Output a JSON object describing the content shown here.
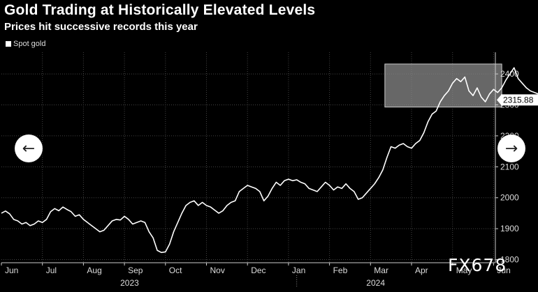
{
  "title": "Gold Trading at Historically Elevated Levels",
  "subtitle": "Prices hit successive records this year",
  "watermark": "FX678",
  "nav": {
    "prev_icon": "arrow-left-icon",
    "next_icon": "arrow-right-icon"
  },
  "chart_data": {
    "type": "line",
    "title": "Gold Trading at Historically Elevated Levels",
    "subtitle": "Prices hit successive records this year",
    "legend": [
      "Spot gold"
    ],
    "legend_position": "top-left",
    "y_axis_side": "right",
    "ylim": [
      1790,
      2470
    ],
    "y_ticks": [
      1800,
      1900,
      2000,
      2100,
      2200,
      2300,
      2400
    ],
    "x_ticks": [
      "Jun",
      "Jul",
      "Aug",
      "Sep",
      "Oct",
      "Nov",
      "Dec",
      "Jan",
      "Feb",
      "Mar",
      "Apr",
      "May",
      "Jun"
    ],
    "year_labels": [
      {
        "label": "2023",
        "under_month_index": 3
      },
      {
        "label": "2024",
        "under_month_index": 9
      }
    ],
    "grid": true,
    "last_value_label": "2315.88",
    "highlight": {
      "from_month_index": 9.35,
      "to_month_index": 12.2,
      "y_from": 2293,
      "y_to": 2432
    },
    "colors": {
      "line": "#ffffff",
      "grid": "#444444",
      "highlight_fill": "#8a8a8a",
      "background": "#000000"
    },
    "series": [
      {
        "name": "Spot gold",
        "points": [
          [
            0.0,
            1950
          ],
          [
            0.1,
            1957
          ],
          [
            0.2,
            1948
          ],
          [
            0.3,
            1930
          ],
          [
            0.4,
            1925
          ],
          [
            0.5,
            1915
          ],
          [
            0.6,
            1920
          ],
          [
            0.7,
            1910
          ],
          [
            0.8,
            1915
          ],
          [
            0.9,
            1925
          ],
          [
            1.0,
            1920
          ],
          [
            1.1,
            1930
          ],
          [
            1.2,
            1955
          ],
          [
            1.3,
            1965
          ],
          [
            1.4,
            1958
          ],
          [
            1.5,
            1970
          ],
          [
            1.6,
            1962
          ],
          [
            1.7,
            1955
          ],
          [
            1.8,
            1940
          ],
          [
            1.9,
            1945
          ],
          [
            2.0,
            1930
          ],
          [
            2.1,
            1920
          ],
          [
            2.2,
            1910
          ],
          [
            2.3,
            1900
          ],
          [
            2.4,
            1890
          ],
          [
            2.5,
            1895
          ],
          [
            2.6,
            1910
          ],
          [
            2.7,
            1925
          ],
          [
            2.8,
            1930
          ],
          [
            2.9,
            1928
          ],
          [
            3.0,
            1940
          ],
          [
            3.1,
            1930
          ],
          [
            3.2,
            1915
          ],
          [
            3.3,
            1920
          ],
          [
            3.4,
            1925
          ],
          [
            3.5,
            1920
          ],
          [
            3.6,
            1890
          ],
          [
            3.7,
            1870
          ],
          [
            3.8,
            1830
          ],
          [
            3.9,
            1823
          ],
          [
            4.0,
            1825
          ],
          [
            4.1,
            1850
          ],
          [
            4.2,
            1890
          ],
          [
            4.3,
            1920
          ],
          [
            4.4,
            1950
          ],
          [
            4.5,
            1975
          ],
          [
            4.6,
            1985
          ],
          [
            4.7,
            1990
          ],
          [
            4.8,
            1975
          ],
          [
            4.9,
            1985
          ],
          [
            5.0,
            1975
          ],
          [
            5.1,
            1970
          ],
          [
            5.2,
            1960
          ],
          [
            5.3,
            1950
          ],
          [
            5.4,
            1958
          ],
          [
            5.5,
            1975
          ],
          [
            5.6,
            1985
          ],
          [
            5.7,
            1990
          ],
          [
            5.8,
            2020
          ],
          [
            5.9,
            2030
          ],
          [
            6.0,
            2040
          ],
          [
            6.1,
            2035
          ],
          [
            6.2,
            2030
          ],
          [
            6.3,
            2020
          ],
          [
            6.4,
            1990
          ],
          [
            6.5,
            2005
          ],
          [
            6.6,
            2030
          ],
          [
            6.7,
            2050
          ],
          [
            6.8,
            2040
          ],
          [
            6.9,
            2055
          ],
          [
            7.0,
            2060
          ],
          [
            7.1,
            2055
          ],
          [
            7.2,
            2058
          ],
          [
            7.3,
            2050
          ],
          [
            7.4,
            2045
          ],
          [
            7.5,
            2030
          ],
          [
            7.6,
            2025
          ],
          [
            7.7,
            2020
          ],
          [
            7.8,
            2035
          ],
          [
            7.9,
            2050
          ],
          [
            8.0,
            2040
          ],
          [
            8.1,
            2025
          ],
          [
            8.2,
            2035
          ],
          [
            8.3,
            2030
          ],
          [
            8.4,
            2045
          ],
          [
            8.5,
            2030
          ],
          [
            8.6,
            2020
          ],
          [
            8.7,
            1995
          ],
          [
            8.8,
            2000
          ],
          [
            8.9,
            2015
          ],
          [
            9.0,
            2030
          ],
          [
            9.1,
            2045
          ],
          [
            9.2,
            2065
          ],
          [
            9.3,
            2090
          ],
          [
            9.4,
            2130
          ],
          [
            9.5,
            2165
          ],
          [
            9.6,
            2160
          ],
          [
            9.7,
            2170
          ],
          [
            9.8,
            2175
          ],
          [
            9.9,
            2165
          ],
          [
            10.0,
            2160
          ],
          [
            10.1,
            2175
          ],
          [
            10.2,
            2185
          ],
          [
            10.3,
            2210
          ],
          [
            10.4,
            2245
          ],
          [
            10.5,
            2270
          ],
          [
            10.6,
            2280
          ],
          [
            10.7,
            2310
          ],
          [
            10.8,
            2330
          ],
          [
            10.9,
            2345
          ],
          [
            11.0,
            2370
          ],
          [
            11.1,
            2385
          ],
          [
            11.2,
            2375
          ],
          [
            11.3,
            2390
          ],
          [
            11.4,
            2345
          ],
          [
            11.5,
            2330
          ],
          [
            11.6,
            2355
          ],
          [
            11.7,
            2325
          ],
          [
            11.8,
            2310
          ],
          [
            11.9,
            2335
          ],
          [
            12.0,
            2350
          ],
          [
            12.1,
            2340
          ],
          [
            12.2,
            2355
          ],
          [
            12.3,
            2380
          ],
          [
            12.4,
            2400
          ],
          [
            12.5,
            2420
          ],
          [
            12.6,
            2385
          ],
          [
            12.7,
            2370
          ],
          [
            12.8,
            2355
          ],
          [
            12.9,
            2345
          ],
          [
            13.0,
            2340
          ],
          [
            13.1,
            2335
          ],
          [
            13.2,
            2330
          ],
          [
            13.3,
            2325
          ],
          [
            13.4,
            2320
          ],
          [
            13.5,
            2316
          ]
        ]
      }
    ]
  }
}
